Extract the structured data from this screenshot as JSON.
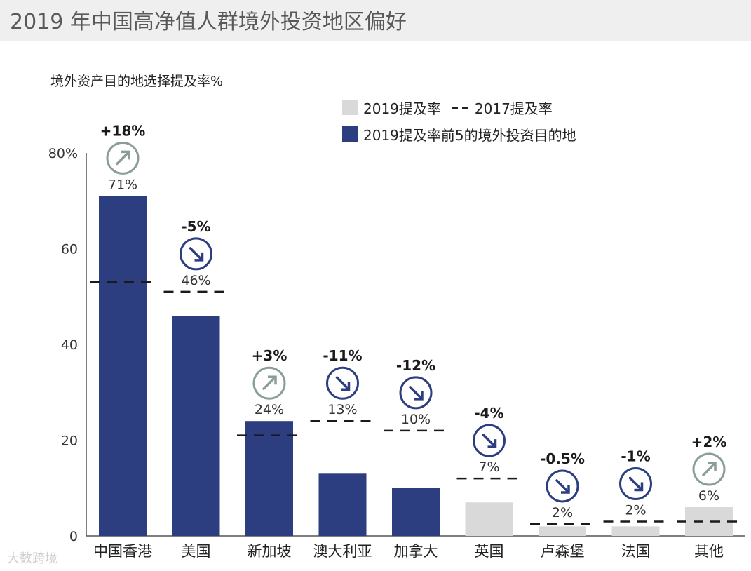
{
  "title": "2019 年中国高净值人群境外投资地区偏好",
  "watermark": "大数跨境",
  "colors": {
    "highlight": "#2c3e80",
    "other": "#d9d9da",
    "title_bg": "#efefef",
    "up_arrow": "#8a9e98",
    "down_arrow": "#2c3e80"
  },
  "legend": {
    "rate2019": "2019提及率",
    "rate2017": "2017提及率",
    "top5": "2019提及率前5的境外投资目的地"
  },
  "chart_data": {
    "type": "bar",
    "ylabel": "境外资产目的地选择提及率%",
    "ylim": [
      0,
      80
    ],
    "yticks": [
      0,
      20,
      40,
      60,
      80
    ],
    "ytick_labels": [
      "0",
      "20",
      "40",
      "60",
      "80%"
    ],
    "categories": [
      "中国香港",
      "美国",
      "新加坡",
      "澳大利亚",
      "加拿大",
      "英国",
      "卢森堡",
      "法国",
      "其他"
    ],
    "series": [
      {
        "name": "2019提及率",
        "values": [
          71,
          46,
          24,
          13,
          10,
          7,
          2,
          2,
          6
        ],
        "value_labels": [
          "71%",
          "46%",
          "24%",
          "13%",
          "10%",
          "7%",
          "2%",
          "2%",
          "6%"
        ],
        "top5": [
          true,
          true,
          true,
          true,
          true,
          false,
          false,
          false,
          false
        ]
      },
      {
        "name": "2017提及率",
        "values": [
          53,
          51,
          21,
          24,
          22,
          12,
          2.5,
          3,
          3
        ]
      }
    ],
    "changes": [
      "+18%",
      "-5%",
      "+3%",
      "-11%",
      "-12%",
      "-4%",
      "-0.5%",
      "-1%",
      "+2%"
    ],
    "direction": [
      "up",
      "down",
      "up",
      "down",
      "down",
      "down",
      "down",
      "down",
      "up"
    ]
  }
}
